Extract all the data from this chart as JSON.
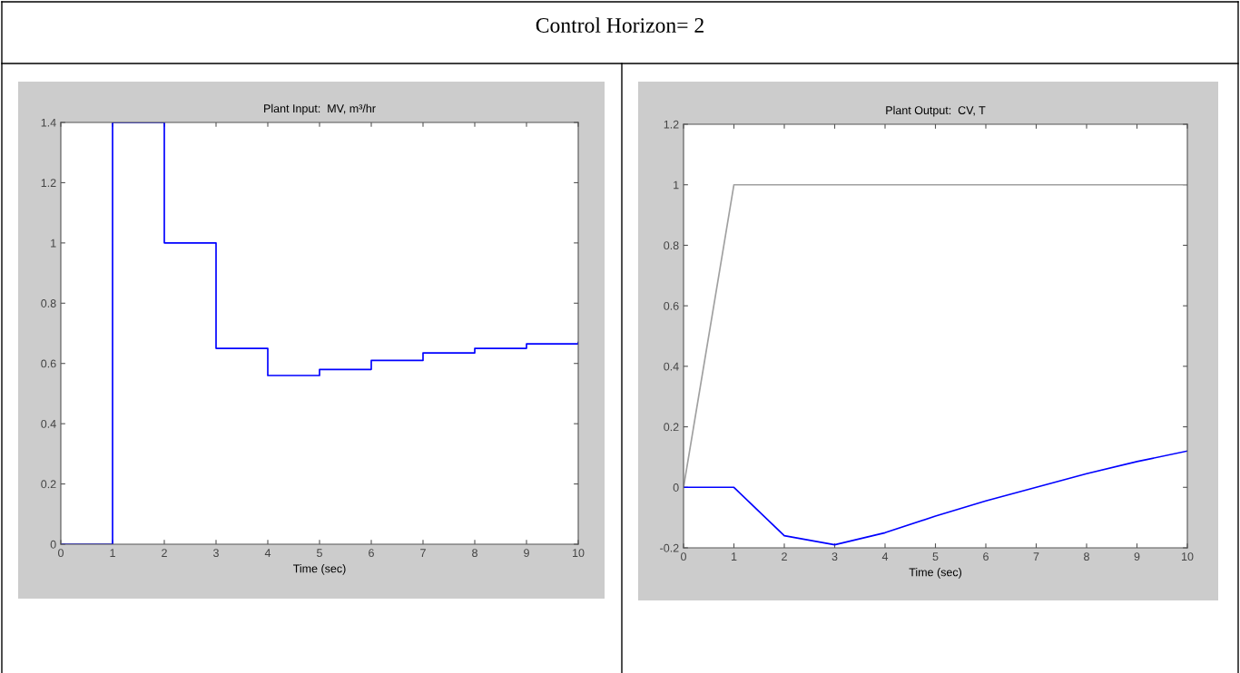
{
  "chart_data": [
    {
      "type": "step",
      "title": "Plant Input:  MV, m³/hr",
      "xlabel": "Time (sec)",
      "annotations": [
        "Control Horizon= 2"
      ],
      "x": [
        0,
        1,
        2,
        3,
        4,
        5,
        6,
        7,
        8,
        9,
        10
      ],
      "series": [
        {
          "color": "#0000ff",
          "values": [
            0,
            1.4,
            1.0,
            0.65,
            0.56,
            0.58,
            0.61,
            0.635,
            0.65,
            0.665,
            0.67
          ]
        }
      ],
      "xlim": [
        0,
        10
      ],
      "xticks": [
        0,
        1,
        2,
        3,
        4,
        5,
        6,
        7,
        8,
        9,
        10
      ],
      "ylim": [
        0,
        1.4
      ],
      "yticks": [
        0,
        0.2,
        0.4,
        0.6,
        0.8,
        1,
        1.2,
        1.4
      ],
      "grid": false
    },
    {
      "type": "line",
      "title": "Plant Output:  CV, T",
      "xlabel": "Time (sec)",
      "x": [
        0,
        1,
        2,
        3,
        4,
        5,
        6,
        7,
        8,
        9,
        10
      ],
      "series": [
        {
          "color": "#a0a0a0",
          "x": [
            0,
            1,
            10
          ],
          "values": [
            0,
            1,
            1
          ]
        },
        {
          "color": "#0000ff",
          "values": [
            0,
            0,
            -0.16,
            -0.19,
            -0.15,
            -0.095,
            -0.045,
            0,
            0.045,
            0.085,
            0.12
          ]
        }
      ],
      "xlim": [
        0,
        10
      ],
      "xticks": [
        0,
        1,
        2,
        3,
        4,
        5,
        6,
        7,
        8,
        9,
        10
      ],
      "ylim": [
        -0.2,
        1.2
      ],
      "yticks": [
        -0.2,
        0,
        0.2,
        0.4,
        0.6,
        0.8,
        1,
        1.2
      ],
      "grid": false
    }
  ]
}
